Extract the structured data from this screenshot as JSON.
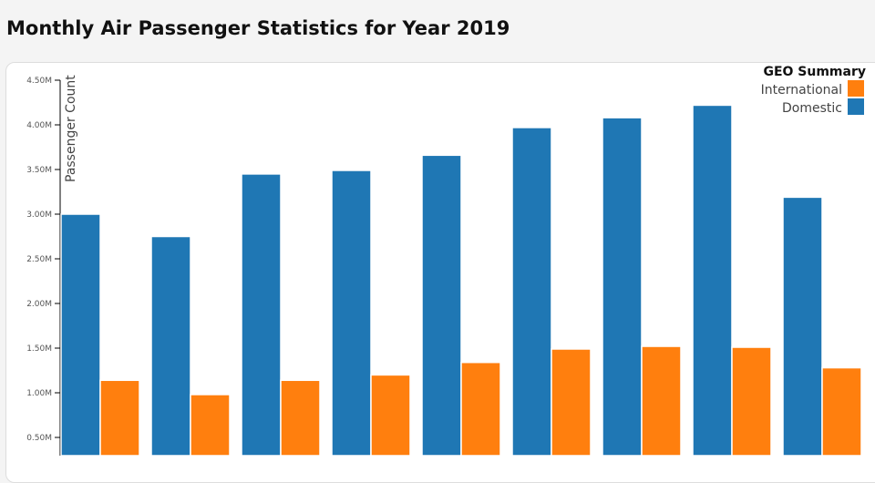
{
  "page": {
    "title": "Monthly Air Passenger Statistics for Year 2019"
  },
  "chart_data": {
    "type": "bar",
    "title": "Monthly Air Passenger Statistics for Year 2019",
    "xlabel": "",
    "ylabel": "Passenger Count",
    "ylim": [
      0,
      4500000
    ],
    "y_ticks": [
      "0.50M",
      "1.00M",
      "1.50M",
      "2.00M",
      "2.50M",
      "3.00M",
      "3.50M",
      "4.00M",
      "4.50M"
    ],
    "y_tick_values": [
      500000,
      1000000,
      1500000,
      2000000,
      2500000,
      3000000,
      3500000,
      4000000,
      4500000
    ],
    "x": [
      1,
      2,
      3,
      4,
      5,
      6,
      7,
      8,
      9
    ],
    "legend": {
      "title": "GEO Summary",
      "placement": "top-right"
    },
    "series": [
      {
        "name": "Domestic",
        "color": "#1f77b4",
        "values": [
          3000000,
          2750000,
          3450000,
          3490000,
          3660000,
          3970000,
          4080000,
          4220000,
          3190000
        ]
      },
      {
        "name": "International",
        "color": "#ff7f0e",
        "values": [
          1140000,
          980000,
          1140000,
          1200000,
          1340000,
          1490000,
          1520000,
          1510000,
          1280000
        ]
      }
    ]
  }
}
